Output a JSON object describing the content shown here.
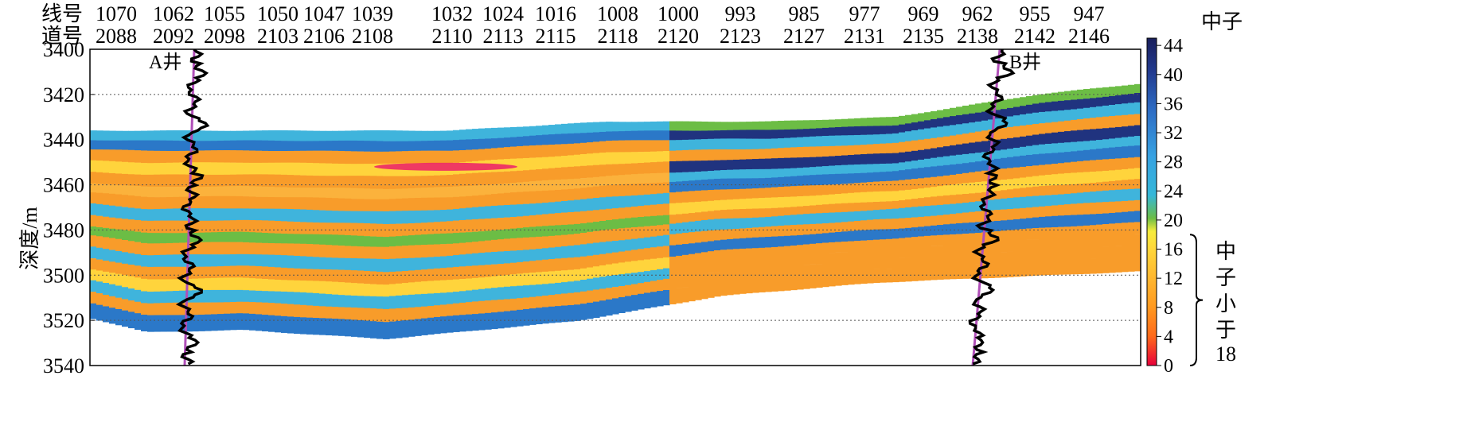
{
  "chart_data": {
    "type": "heatmap",
    "title": "",
    "header_labels": {
      "line": "线号",
      "trace": "道号"
    },
    "ylabel": "深度/m",
    "ylim": [
      3400,
      3540
    ],
    "y_ticks": [
      3400,
      3420,
      3440,
      3460,
      3480,
      3500,
      3520,
      3540
    ],
    "grid_y": [
      3420,
      3460,
      3480,
      3500,
      3520
    ],
    "line_numbers": [
      "1070",
      "1062",
      "1055",
      "1050",
      "1047",
      "1039",
      "1032",
      "1024",
      "1016",
      "1008",
      "1000",
      "993",
      "985",
      "977",
      "969",
      "962",
      "955",
      "947"
    ],
    "trace_numbers": [
      "2088",
      "2092",
      "2098",
      "2103",
      "2106",
      "2108",
      "2110",
      "2113",
      "2115",
      "2118",
      "2120",
      "2123",
      "2127",
      "2131",
      "2135",
      "2138",
      "2142",
      "2146"
    ],
    "colorbar": {
      "title": "中子",
      "ticks": [
        0,
        4,
        8,
        12,
        16,
        20,
        24,
        28,
        32,
        36,
        40,
        44
      ],
      "range": [
        0,
        45
      ],
      "colors": [
        "#e8003a",
        "#ff6a1a",
        "#ff9a20",
        "#ffb830",
        "#ffd83a",
        "#f6ec3c",
        "#6cbd45",
        "#34b7d8",
        "#37a2e2",
        "#2d6cc4",
        "#223a8e",
        "#1a1f5c"
      ],
      "bracket_label": [
        "中",
        "子",
        "小",
        "于",
        "18"
      ]
    },
    "wells": [
      {
        "name": "A井",
        "path_depth": [
          3400,
          3540
        ]
      },
      {
        "name": "B井",
        "path_depth": [
          3400,
          3540
        ]
      }
    ]
  }
}
